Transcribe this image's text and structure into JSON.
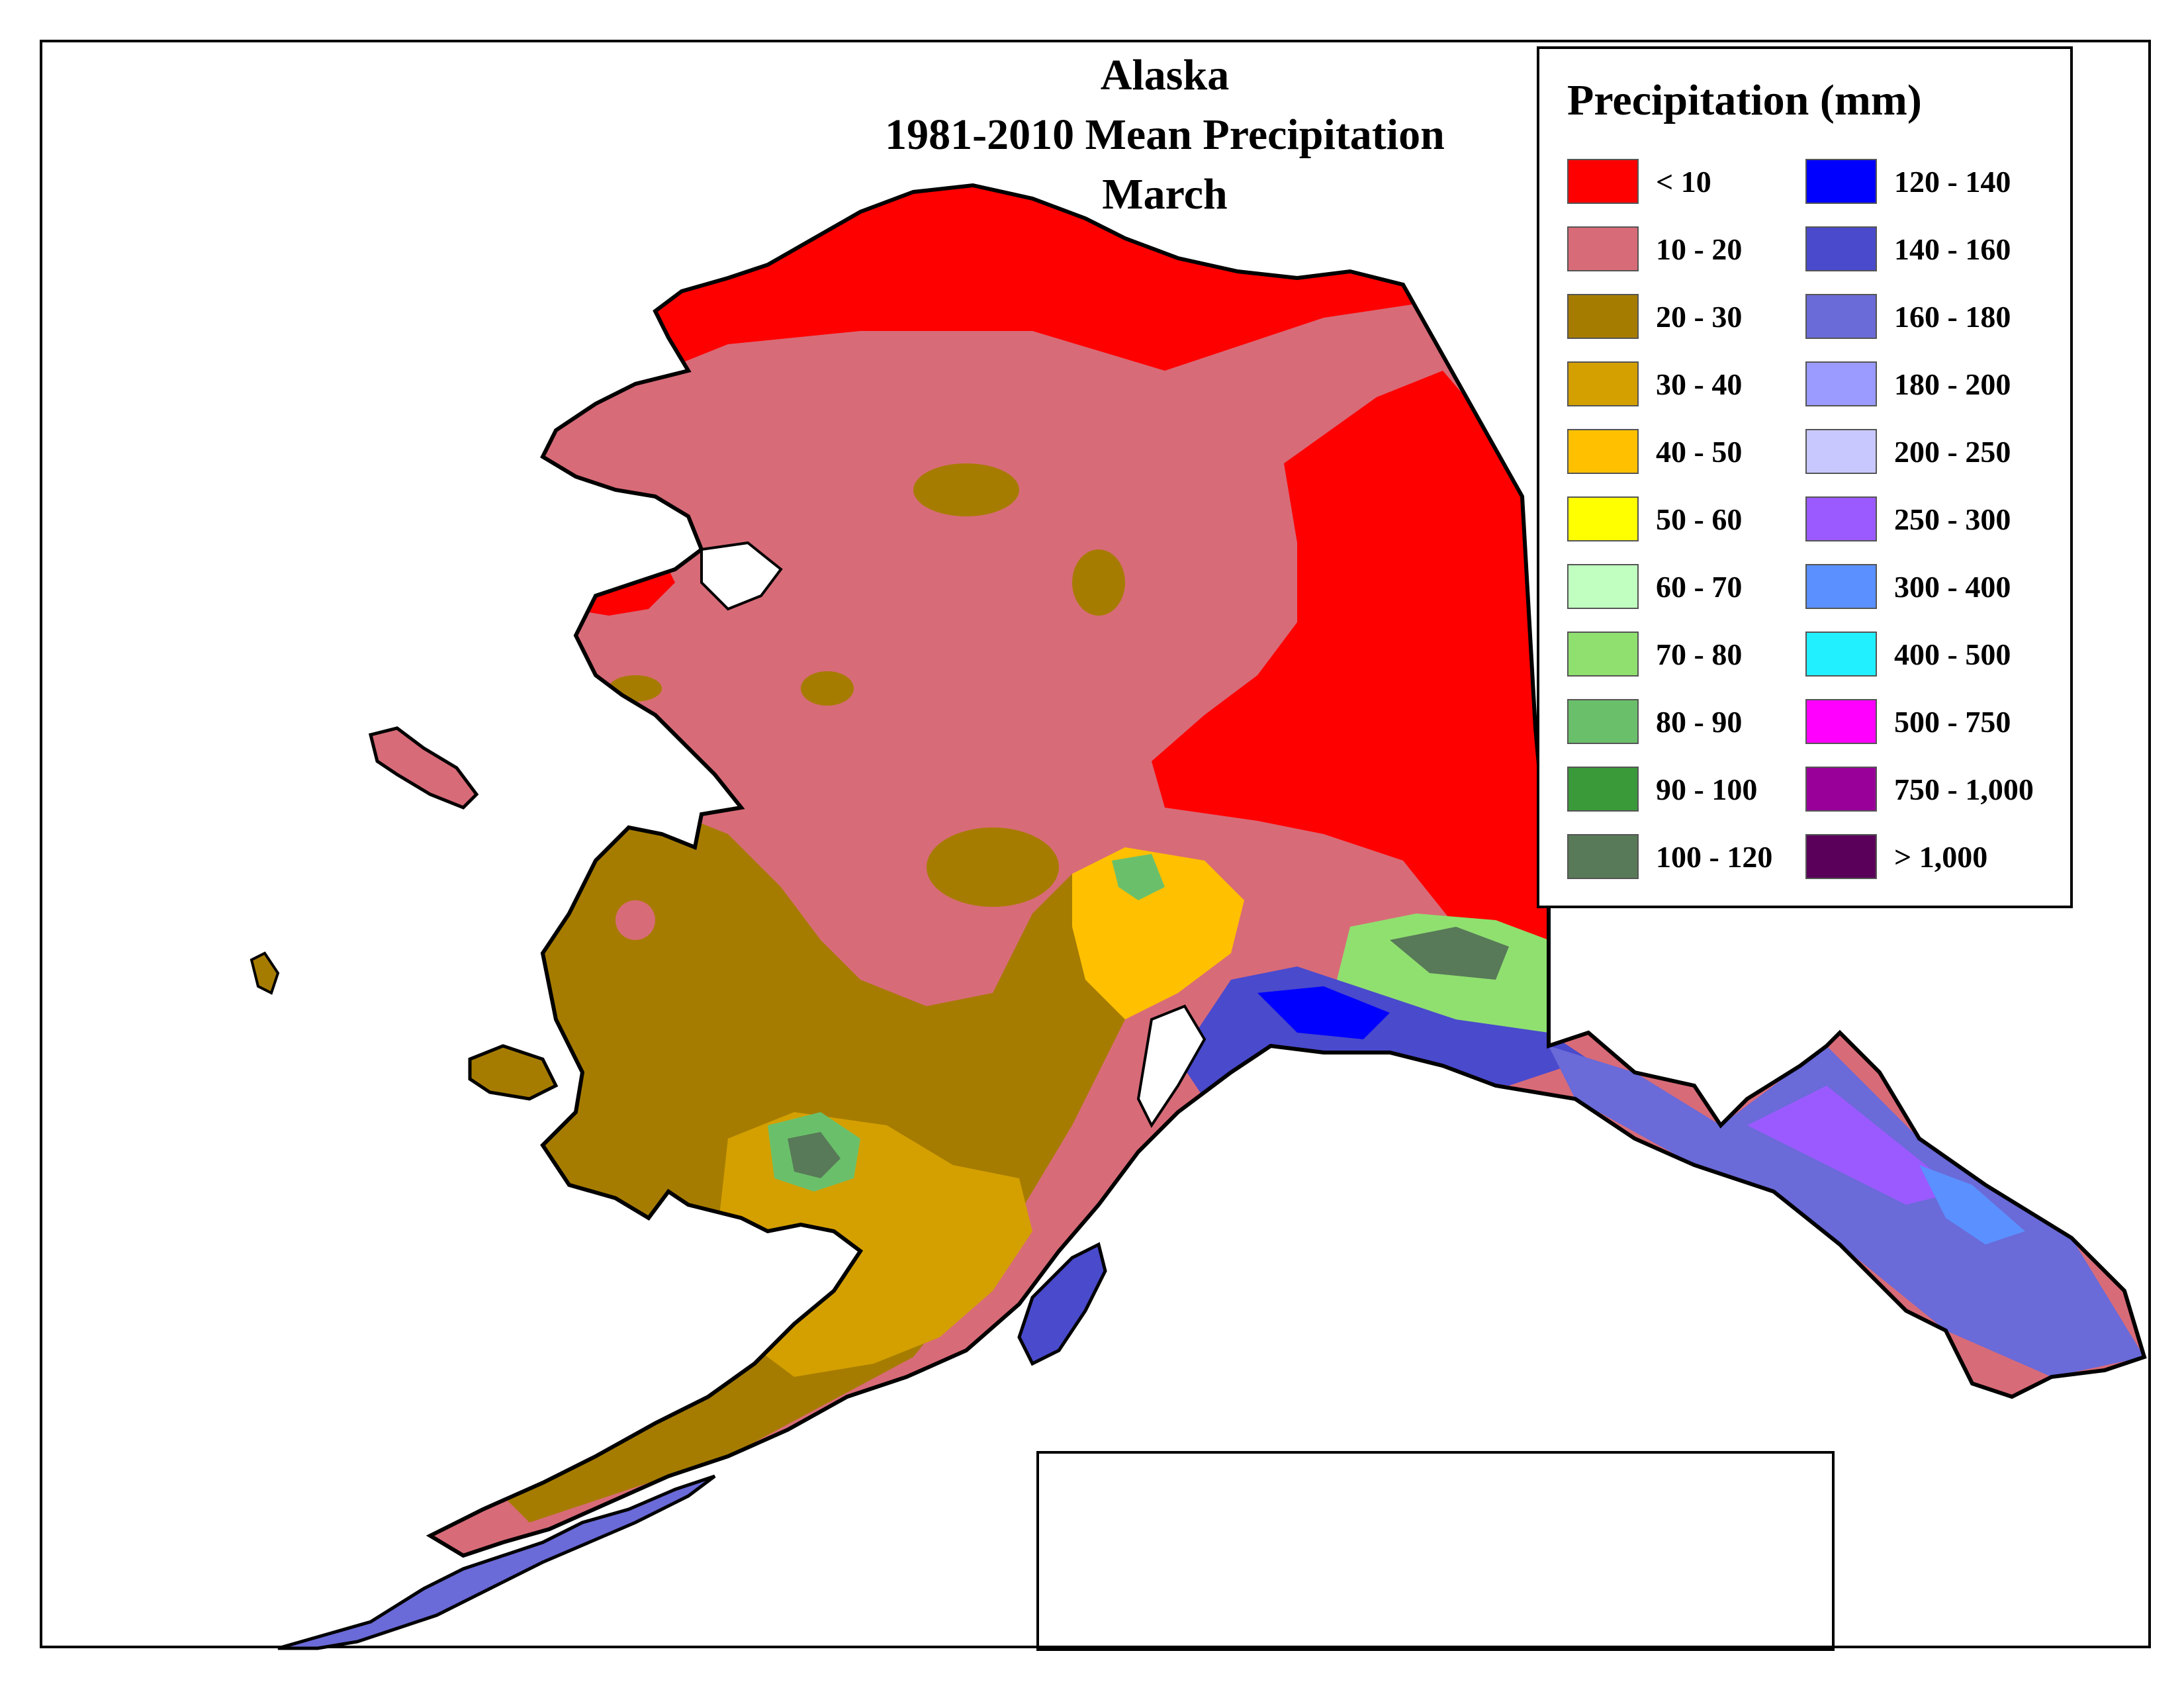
{
  "title": {
    "line1": "Alaska",
    "line2": "1981-2010 Mean Precipitation",
    "line3": "March"
  },
  "legend": {
    "title": "Precipitation (mm)",
    "items": [
      {
        "label": "< 10",
        "color": "#ff0000"
      },
      {
        "label": "10 - 20",
        "color": "#d86b78"
      },
      {
        "label": "20 - 30",
        "color": "#a67c00"
      },
      {
        "label": "30 - 40",
        "color": "#d4a000"
      },
      {
        "label": "40 - 50",
        "color": "#ffc000"
      },
      {
        "label": "50 - 60",
        "color": "#ffff00"
      },
      {
        "label": "60 - 70",
        "color": "#c0ffc0"
      },
      {
        "label": "70 - 80",
        "color": "#90e070"
      },
      {
        "label": "80 - 90",
        "color": "#6ac06a"
      },
      {
        "label": "90 - 100",
        "color": "#3a9a3a"
      },
      {
        "label": "100 - 120",
        "color": "#587a58"
      },
      {
        "label": "120 - 140",
        "color": "#0000ff"
      },
      {
        "label": "140 - 160",
        "color": "#4a4acc"
      },
      {
        "label": "160 - 180",
        "color": "#6a6ad8"
      },
      {
        "label": "180 - 200",
        "color": "#9a9aff"
      },
      {
        "label": "200 - 250",
        "color": "#c8c8ff"
      },
      {
        "label": "250 - 300",
        "color": "#9a5aff"
      },
      {
        "label": "300 - 400",
        "color": "#5a90ff"
      },
      {
        "label": "400 - 500",
        "color": "#20f0ff"
      },
      {
        "label": "500 - 750",
        "color": "#ff00ff"
      },
      {
        "label": "750 - 1,000",
        "color": "#990099"
      },
      {
        "label": "> 1,000",
        "color": "#5a005a"
      }
    ]
  }
}
